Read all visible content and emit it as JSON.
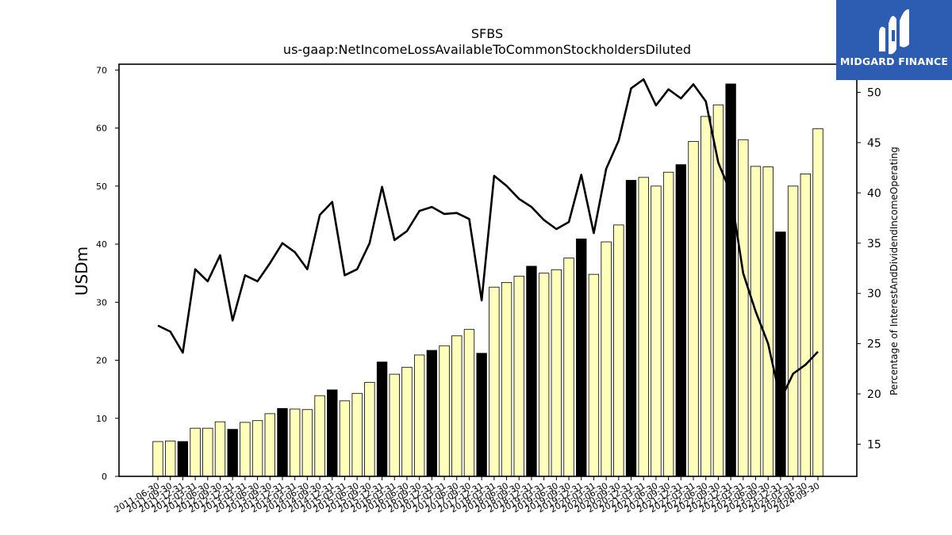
{
  "chart_data": {
    "type": "bar",
    "title": "SFBS",
    "subtitle": "us-gaap:NetIncomeLossAvailableToCommonStockholdersDiluted",
    "ylabel": "USDm",
    "y2label": "Percentage of InterestAndDividendIncomeOperating",
    "ylim": [
      0,
      71
    ],
    "y2lim": [
      11.8,
      52.8
    ],
    "yticks": [
      0,
      10,
      20,
      30,
      40,
      50,
      60,
      70
    ],
    "y2ticks": [
      15,
      20,
      25,
      30,
      35,
      40,
      45,
      50
    ],
    "grid": false,
    "categories": [
      "2011-06-30",
      "2011-09-30",
      "2011-12-31",
      "2012-03-31",
      "2012-06-30",
      "2012-09-30",
      "2012-12-31",
      "2013-03-31",
      "2013-06-30",
      "2013-09-30",
      "2013-12-31",
      "2014-03-31",
      "2014-06-30",
      "2014-09-30",
      "2014-12-31",
      "2015-03-31",
      "2015-06-30",
      "2015-09-30",
      "2015-12-31",
      "2016-03-31",
      "2016-06-30",
      "2016-09-30",
      "2016-12-31",
      "2017-03-31",
      "2017-06-30",
      "2017-09-30",
      "2017-12-31",
      "2018-03-31",
      "2018-06-30",
      "2018-09-30",
      "2018-12-31",
      "2019-03-31",
      "2019-06-30",
      "2019-09-30",
      "2019-12-31",
      "2020-03-31",
      "2020-06-30",
      "2020-09-30",
      "2020-12-31",
      "2021-03-31",
      "2021-06-30",
      "2021-09-30",
      "2021-12-31",
      "2022-03-31",
      "2022-06-30",
      "2022-09-30",
      "2022-12-31",
      "2023-03-31",
      "2023-06-30",
      "2023-09-30",
      "2023-12-31",
      "2024-03-31",
      "2024-06-30",
      "2024-09-30"
    ],
    "series": [
      {
        "kind": "bar",
        "values": [
          6.0,
          6.1,
          6.0,
          8.3,
          8.3,
          9.4,
          8.1,
          9.3,
          9.6,
          10.8,
          11.7,
          11.6,
          11.5,
          13.9,
          14.9,
          13.0,
          14.3,
          16.2,
          19.7,
          17.6,
          18.8,
          20.9,
          21.7,
          22.5,
          24.2,
          25.3,
          21.2,
          32.6,
          33.4,
          34.5,
          36.2,
          35.0,
          35.6,
          37.6,
          40.9,
          34.8,
          40.4,
          43.3,
          51.0,
          51.5,
          50.0,
          52.4,
          53.7,
          57.7,
          62.0,
          64.0,
          67.6,
          58.0,
          53.4,
          53.3,
          42.1,
          50.0,
          52.1,
          59.9
        ],
        "highlight": [
          false,
          false,
          true,
          false,
          false,
          false,
          true,
          false,
          false,
          false,
          true,
          false,
          false,
          false,
          true,
          false,
          false,
          false,
          true,
          false,
          false,
          false,
          true,
          false,
          false,
          false,
          true,
          false,
          false,
          false,
          true,
          false,
          false,
          false,
          true,
          false,
          false,
          false,
          true,
          false,
          false,
          false,
          true,
          false,
          false,
          false,
          true,
          false,
          false,
          false,
          true,
          false,
          false,
          false
        ],
        "color": "#ffffbb",
        "highlight_color": "#000000"
      },
      {
        "kind": "line",
        "axis": "right",
        "color": "#000000",
        "values": [
          26.8,
          26.2,
          24.1,
          32.4,
          31.2,
          33.8,
          27.3,
          31.8,
          31.2,
          33.0,
          35.0,
          34.1,
          32.4,
          37.8,
          39.1,
          31.8,
          32.4,
          35.0,
          40.6,
          35.3,
          36.2,
          38.2,
          38.6,
          37.9,
          38.0,
          37.4,
          29.3,
          41.7,
          40.7,
          39.4,
          38.6,
          37.3,
          36.4,
          37.1,
          41.8,
          36.0,
          42.4,
          45.2,
          50.4,
          51.3,
          48.7,
          50.3,
          49.4,
          50.8,
          49.1,
          43.0,
          40.0,
          32.0,
          28.2,
          25.0,
          19.4,
          22.0,
          22.9,
          24.2
        ]
      }
    ]
  },
  "logo": {
    "text": "MIDGARD FINANCE",
    "color": "#2d5db3"
  }
}
